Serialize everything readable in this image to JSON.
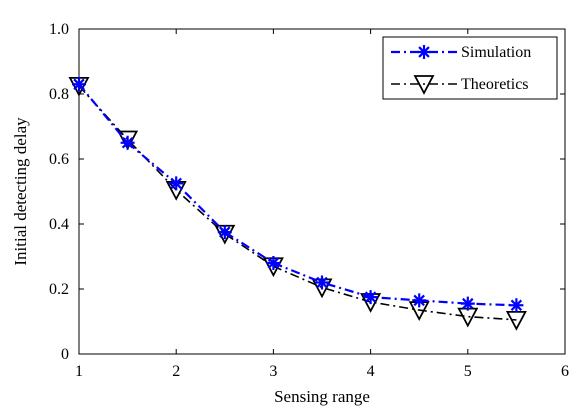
{
  "chart_data": {
    "type": "line",
    "title": "",
    "xlabel": "Sensing range",
    "ylabel": "Initial detecting delay",
    "xlim": [
      1,
      6
    ],
    "ylim": [
      0,
      1.0
    ],
    "xticks": [
      1,
      2,
      3,
      4,
      5,
      6
    ],
    "xtick_labels": [
      "1",
      "2",
      "3",
      "4",
      "5",
      "6"
    ],
    "yticks": [
      0,
      0.2,
      0.4,
      0.6,
      0.8,
      1.0
    ],
    "ytick_labels": [
      "0",
      "0.2",
      "0.4",
      "0.6",
      "0.8",
      "1.0"
    ],
    "grid": false,
    "legend_position": "top-right",
    "x": [
      1,
      1.5,
      2,
      2.5,
      3,
      3.5,
      4,
      4.5,
      5,
      5.5
    ],
    "series": [
      {
        "name": "Simulation",
        "color": "#0000ff",
        "marker": "asterisk",
        "line_style": "dash-dot",
        "values": [
          0.83,
          0.65,
          0.525,
          0.375,
          0.28,
          0.22,
          0.175,
          0.165,
          0.155,
          0.15
        ]
      },
      {
        "name": "Theoretics",
        "color": "#000000",
        "marker": "triangle-down",
        "line_style": "dash-dot",
        "values": [
          0.825,
          0.66,
          0.505,
          0.37,
          0.27,
          0.205,
          0.16,
          0.135,
          0.115,
          0.105
        ]
      }
    ]
  }
}
